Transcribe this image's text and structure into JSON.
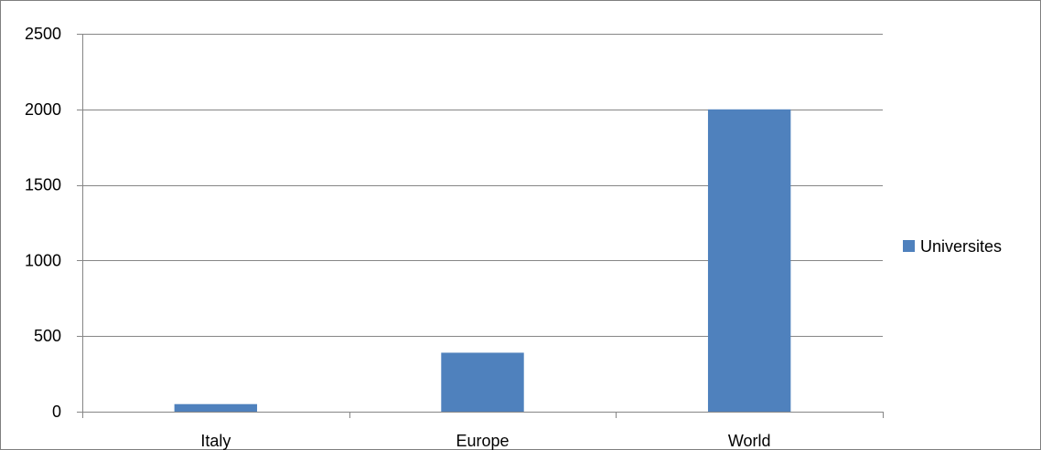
{
  "chart_data": {
    "type": "bar",
    "categories": [
      "Italy",
      "Europe",
      "World"
    ],
    "series": [
      {
        "name": "Universites",
        "values": [
          50,
          390,
          2000
        ],
        "color": "#4f81bd"
      }
    ],
    "ylim": [
      0,
      2500
    ],
    "yticks": [
      0,
      500,
      1000,
      1500,
      2000,
      2500
    ],
    "grid": true,
    "legend_position": "right",
    "title": "",
    "xlabel": "",
    "ylabel": ""
  }
}
